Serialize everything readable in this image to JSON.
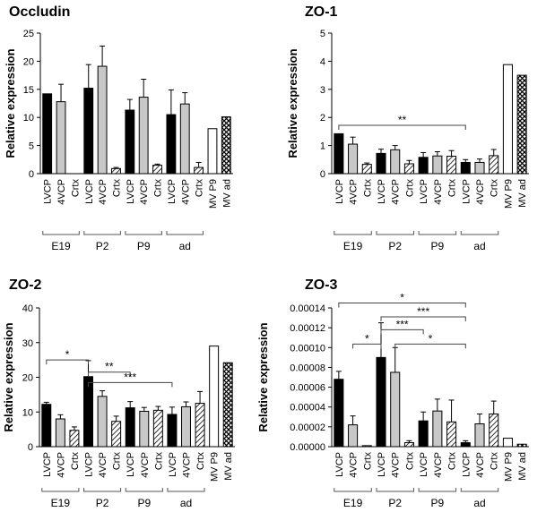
{
  "chart_data": [
    {
      "type": "bar",
      "title": "Occludin",
      "ylabel": "Relative expression",
      "ylim": [
        0,
        25
      ],
      "yticks": [
        "0",
        "5",
        "10",
        "15",
        "20",
        "25"
      ],
      "categories": [
        "LVCP",
        "4VCP",
        "Crtx",
        "LVCP",
        "4VCP",
        "Crtx",
        "LVCP",
        "4VCP",
        "Crtx",
        "LVCP",
        "4VCP",
        "Crtx",
        "MV P9",
        "MV ad"
      ],
      "values": [
        14.2,
        12.8,
        0,
        15.2,
        19.1,
        0.9,
        11.3,
        13.6,
        1.5,
        10.5,
        12.4,
        1.1,
        8.0,
        10.1
      ],
      "errors": [
        0,
        3.1,
        0,
        4.2,
        3.6,
        0.2,
        1.9,
        3.2,
        0.2,
        4.4,
        2.0,
        0.9,
        0,
        0
      ],
      "groups": [
        "E19",
        "P2",
        "P9",
        "ad"
      ],
      "significance": []
    },
    {
      "type": "bar",
      "title": "ZO-1",
      "ylabel": "Relative expression",
      "ylim": [
        0,
        5
      ],
      "yticks": [
        "0",
        "1",
        "2",
        "3",
        "4",
        "5"
      ],
      "categories": [
        "LVCP",
        "4VCP",
        "Crtx",
        "LVCP",
        "4VCP",
        "Crtx",
        "LVCP",
        "4VCP",
        "Crtx",
        "LVCP",
        "4VCP",
        "Crtx",
        "MV P9",
        "MV ad"
      ],
      "values": [
        1.42,
        1.05,
        0.33,
        0.72,
        0.85,
        0.35,
        0.58,
        0.63,
        0.62,
        0.4,
        0.4,
        0.64,
        3.88,
        3.5
      ],
      "errors": [
        0,
        0.25,
        0.05,
        0.15,
        0.15,
        0.12,
        0.17,
        0.15,
        0.2,
        0.1,
        0.12,
        0.22,
        0,
        0
      ],
      "groups": [
        "E19",
        "P2",
        "P9",
        "ad"
      ],
      "significance": [
        {
          "from": 0,
          "to": 9,
          "level": 1.72,
          "label": "**"
        }
      ]
    },
    {
      "type": "bar",
      "title": "ZO-2",
      "ylabel": "Relative expression",
      "ylim": [
        0,
        40
      ],
      "yticks": [
        "0",
        "10",
        "20",
        "30",
        "40"
      ],
      "categories": [
        "LVCP",
        "4VCP",
        "Crtx",
        "LVCP",
        "4VCP",
        "Crtx",
        "LVCP",
        "4VCP",
        "Crtx",
        "LVCP",
        "4VCP",
        "Crtx",
        "MV P9",
        "MV ad"
      ],
      "values": [
        12.2,
        8.0,
        4.7,
        20.2,
        14.5,
        7.3,
        11.2,
        10.2,
        10.5,
        9.3,
        11.5,
        12.5,
        29.0,
        24.2
      ],
      "errors": [
        0.6,
        1.2,
        1.0,
        4.6,
        1.6,
        1.5,
        1.8,
        1.1,
        1.1,
        2.1,
        1.4,
        3.4,
        0,
        0
      ],
      "groups": [
        "E19",
        "P2",
        "P9",
        "ad"
      ],
      "significance": [
        {
          "from": 0,
          "to": 3,
          "level": 25,
          "label": "*"
        },
        {
          "from": 3,
          "to": 6,
          "level": 21.5,
          "label": "**"
        },
        {
          "from": 3,
          "to": 9,
          "level": 18.5,
          "label": "***"
        }
      ]
    },
    {
      "type": "bar",
      "title": "ZO-3",
      "ylabel": "Relative expression",
      "ylim": [
        0,
        0.00014
      ],
      "yticks": [
        "0.00000",
        "0.00002",
        "0.00004",
        "0.00006",
        "0.00008",
        "0.00010",
        "0.00012",
        "0.00014"
      ],
      "categories": [
        "LVCP",
        "4VCP",
        "Crtx",
        "LVCP",
        "4VCP",
        "Crtx",
        "LVCP",
        "4VCP",
        "Crtx",
        "LVCP",
        "4VCP",
        "Crtx",
        "MV P9",
        "MV ad"
      ],
      "values": [
        6.8e-05,
        2.2e-05,
        1e-06,
        9e-05,
        7.5e-05,
        4e-06,
        2.6e-05,
        3.6e-05,
        2.5e-05,
        4e-06,
        2.3e-05,
        3.3e-05,
        8.5e-06,
        2.5e-06
      ],
      "errors": [
        8e-06,
        9e-06,
        0,
        3.5e-05,
        2.5e-05,
        2e-06,
        9e-06,
        1.2e-05,
        2.2e-05,
        2e-06,
        1e-05,
        1.3e-05,
        0,
        0
      ],
      "groups": [
        "E19",
        "P2",
        "P9",
        "ad"
      ],
      "significance": [
        {
          "from": 0,
          "to": 9,
          "level": 0.000145,
          "label": "*"
        },
        {
          "from": 3,
          "to": 9,
          "level": 0.000131,
          "label": "***"
        },
        {
          "from": 3,
          "to": 6,
          "level": 0.000118,
          "label": "***"
        },
        {
          "from": 1,
          "to": 3,
          "level": 0.0001035,
          "label": "*"
        },
        {
          "from": 4,
          "to": 9,
          "level": 0.0001035,
          "label": "*"
        }
      ]
    }
  ]
}
